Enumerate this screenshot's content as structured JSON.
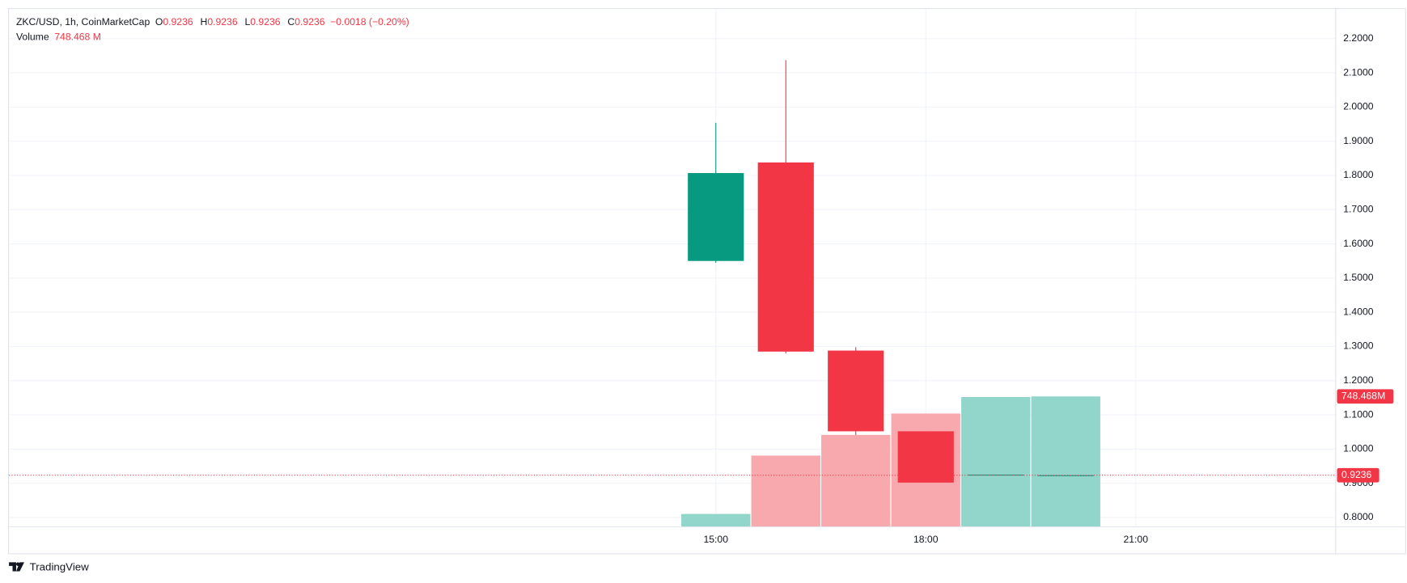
{
  "chart_data": {
    "type": "candlestick",
    "legend": {
      "symbol": "ZKC/USD, 1h, CoinMarketCap",
      "items": [
        {
          "key": "O",
          "value": 0.9236
        },
        {
          "key": "H",
          "value": 0.9236
        },
        {
          "key": "L",
          "value": 0.9236
        },
        {
          "key": "C",
          "value": 0.9236
        }
      ],
      "change": "−0.0018 (−0.20%)"
    },
    "x": [
      15,
      16,
      17,
      18,
      19,
      20
    ],
    "open": [
      1.55,
      1.838,
      1.288,
      1.052,
      0.9248,
      0.9236
    ],
    "high": [
      1.954,
      2.137,
      1.298,
      1.052,
      0.9254,
      0.9236
    ],
    "low": [
      1.545,
      1.28,
      1.041,
      0.902,
      0.9245,
      0.9236
    ],
    "close": [
      1.807,
      1.285,
      1.052,
      0.902,
      0.9254,
      0.9236
    ],
    "up_color": "#089981",
    "down_color": "#f23645",
    "volume": {
      "name": "Volume",
      "values": [
        72,
        408,
        527,
        650,
        745,
        748.468
      ],
      "legend_label": "748.468 M",
      "last_label": "748.468M",
      "up_color": "#92d6cb",
      "down_color": "#f8a9ae"
    },
    "last_price": 0.9236,
    "xlim": [
      4.9,
      23.85
    ],
    "xticks": [
      {
        "value": 15,
        "label": "15:00"
      },
      {
        "value": 18,
        "label": "18:00"
      },
      {
        "value": 21,
        "label": "21:00"
      }
    ],
    "ylim": [
      0.7738,
      2.2866
    ],
    "yticks": [
      {
        "value": 0.8,
        "label": "0.8000"
      },
      {
        "value": 0.9,
        "label": "0.9000"
      },
      {
        "value": 1.0,
        "label": "1.0000"
      },
      {
        "value": 1.1,
        "label": "1.1000"
      },
      {
        "value": 1.2,
        "label": "1.2000"
      },
      {
        "value": 1.3,
        "label": "1.3000"
      },
      {
        "value": 1.4,
        "label": "1.4000"
      },
      {
        "value": 1.5,
        "label": "1.5000"
      },
      {
        "value": 1.6,
        "label": "1.6000"
      },
      {
        "value": 1.7,
        "label": "1.7000"
      },
      {
        "value": 1.8,
        "label": "1.8000"
      },
      {
        "value": 1.9,
        "label": "1.9000"
      },
      {
        "value": 2.0,
        "label": "2.0000"
      },
      {
        "value": 2.1,
        "label": "2.1000"
      },
      {
        "value": 2.2,
        "label": "2.2000"
      }
    ],
    "grid": true,
    "branding": "TradingView"
  }
}
